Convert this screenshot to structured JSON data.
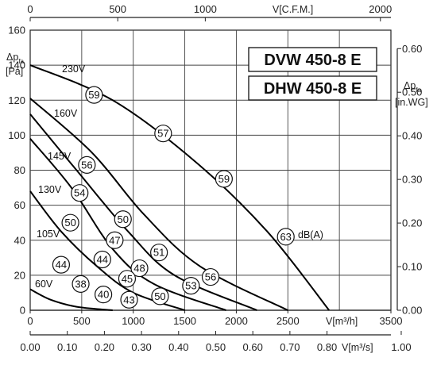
{
  "chart_data": {
    "type": "line",
    "models": [
      "DVW 450-8 E",
      "DHW 450-8 E"
    ],
    "axes": {
      "bottom": {
        "label": "V[m³/h]",
        "ticks": [
          "0",
          "500",
          "1000",
          "1500",
          "2000",
          "2500",
          "3500"
        ],
        "range": [
          0,
          3500
        ]
      },
      "bottom2": {
        "label": "V[m³/s]",
        "ticks": [
          "0.00",
          "0.10",
          "0.20",
          "0.30",
          "0.40",
          "0.50",
          "0.60",
          "0.70",
          "0.80",
          "1.00"
        ]
      },
      "top": {
        "label": "V[C.F.M.]",
        "ticks": [
          "0",
          "500",
          "1000",
          "2000"
        ]
      },
      "left": {
        "label_main": "Δp",
        "label_sub": "fa",
        "label_unit": "[Pa]",
        "ticks": [
          "0",
          "20",
          "40",
          "60",
          "80",
          "100",
          "120",
          "140",
          "160"
        ],
        "range": [
          0,
          160
        ]
      },
      "right": {
        "label_main": "Δp",
        "label_sub": "fa",
        "label_unit": "[in.WG]",
        "ticks": [
          "0.00",
          "0.10",
          "0.20",
          "0.30",
          "0.40",
          "0.50",
          "0.60"
        ]
      }
    },
    "series": [
      {
        "name": "230V",
        "x": [
          0,
          800,
          1600,
          2300,
          2900
        ],
        "y": [
          140,
          120,
          85,
          45,
          0
        ]
      },
      {
        "name": "160V",
        "x": [
          0,
          600,
          1100,
          1650,
          2500
        ],
        "y": [
          121,
          90,
          55,
          25,
          0
        ]
      },
      {
        "name": "145V",
        "x": [
          0,
          450,
          950,
          1400,
          2200
        ],
        "y": [
          112,
          80,
          45,
          20,
          0
        ]
      },
      {
        "name": "130V",
        "x": [
          0,
          400,
          800,
          1200,
          1900
        ],
        "y": [
          98,
          70,
          35,
          15,
          0
        ]
      },
      {
        "name": "105V",
        "x": [
          0,
          300,
          650,
          1000,
          1500
        ],
        "y": [
          68,
          45,
          25,
          10,
          0
        ]
      },
      {
        "name": "60V",
        "x": [
          0,
          200,
          450,
          800
        ],
        "y": [
          12,
          6,
          2,
          0
        ]
      }
    ],
    "noise_badges": [
      {
        "text": "59",
        "x": 620,
        "y": 123
      },
      {
        "text": "57",
        "x": 1290,
        "y": 101
      },
      {
        "text": "59",
        "x": 1880,
        "y": 75
      },
      {
        "text": "63",
        "x": 2480,
        "y": 42
      },
      {
        "text": "56",
        "x": 550,
        "y": 83
      },
      {
        "text": "54",
        "x": 480,
        "y": 67
      },
      {
        "text": "50",
        "x": 390,
        "y": 50
      },
      {
        "text": "50",
        "x": 900,
        "y": 52
      },
      {
        "text": "47",
        "x": 820,
        "y": 40
      },
      {
        "text": "44",
        "x": 300,
        "y": 26
      },
      {
        "text": "44",
        "x": 700,
        "y": 29
      },
      {
        "text": "51",
        "x": 1250,
        "y": 33
      },
      {
        "text": "48",
        "x": 1060,
        "y": 24
      },
      {
        "text": "45",
        "x": 940,
        "y": 18
      },
      {
        "text": "38",
        "x": 490,
        "y": 15
      },
      {
        "text": "40",
        "x": 710,
        "y": 9
      },
      {
        "text": "43",
        "x": 960,
        "y": 6
      },
      {
        "text": "50",
        "x": 1260,
        "y": 8
      },
      {
        "text": "53",
        "x": 1560,
        "y": 14
      },
      {
        "text": "56",
        "x": 1750,
        "y": 19
      }
    ],
    "annotation": "dB(A)",
    "grid": true
  }
}
